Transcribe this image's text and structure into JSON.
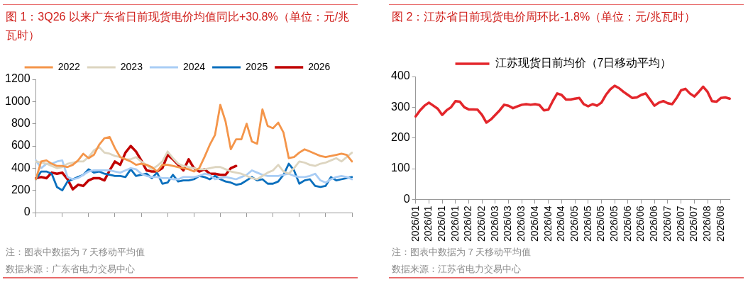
{
  "chart_data": [
    {
      "type": "line",
      "title": "图 1：3Q26 以来广东省日前现货电价均值同比+30.8%（单位：元/兆瓦时）",
      "categories": [
        null,
        null,
        null,
        null,
        null,
        null,
        null,
        null,
        null,
        null,
        null,
        null,
        null,
        null,
        null,
        null,
        null,
        null,
        null,
        null,
        null,
        null,
        null,
        null,
        null,
        null,
        null,
        null,
        null,
        null,
        null,
        null,
        null,
        null,
        null,
        null,
        null,
        null,
        null,
        null,
        null,
        null,
        null,
        null,
        null,
        null,
        null,
        null,
        null,
        null,
        null,
        null,
        null,
        null,
        null,
        null,
        null,
        null,
        null,
        null,
        null
      ],
      "series": [
        {
          "name": "2022",
          "color": "#f4954a",
          "values": [
            300,
            460,
            470,
            440,
            420,
            420,
            410,
            430,
            470,
            530,
            490,
            520,
            610,
            670,
            680,
            580,
            500,
            480,
            460,
            430,
            440,
            430,
            410,
            370,
            430,
            430,
            420,
            410,
            400,
            390,
            370,
            400,
            500,
            610,
            700,
            970,
            820,
            570,
            660,
            660,
            800,
            640,
            620,
            930,
            780,
            760,
            810,
            720,
            490,
            500,
            540,
            570,
            550,
            530,
            510,
            500,
            510,
            520,
            530,
            520,
            460
          ]
        },
        {
          "name": "2023",
          "color": "#ddd5c0",
          "values": [
            460,
            450,
            440,
            420,
            400,
            410,
            440,
            450,
            460,
            460,
            500,
            560,
            590,
            540,
            530,
            510,
            500,
            480,
            480,
            500,
            460,
            430,
            390,
            420,
            460,
            550,
            490,
            440,
            420,
            410,
            400,
            390,
            390,
            400,
            410,
            410,
            390,
            370,
            360,
            350,
            330,
            310,
            300,
            330,
            360,
            380,
            430,
            370,
            350,
            400,
            460,
            450,
            430,
            420,
            440,
            450,
            470,
            490,
            460,
            500,
            540
          ]
        },
        {
          "name": "2024",
          "color": "#a9cdf5",
          "values": [
            470,
            400,
            440,
            440,
            460,
            470,
            320,
            300,
            310,
            340,
            370,
            380,
            380,
            380,
            380,
            370,
            360,
            380,
            400,
            390,
            350,
            330,
            320,
            320,
            310,
            310,
            300,
            300,
            320,
            320,
            320,
            330,
            350,
            340,
            300,
            310,
            320,
            310,
            300,
            320,
            340,
            380,
            360,
            340,
            330,
            330,
            330,
            340,
            350,
            330,
            320,
            320,
            330,
            350,
            290,
            270,
            300,
            320,
            330,
            320,
            300
          ]
        },
        {
          "name": "2025",
          "color": "#0a6fbd",
          "values": [
            300,
            370,
            370,
            350,
            230,
            200,
            280,
            300,
            320,
            340,
            390,
            360,
            370,
            350,
            340,
            330,
            330,
            320,
            390,
            330,
            340,
            350,
            310,
            360,
            260,
            270,
            340,
            280,
            290,
            290,
            300,
            330,
            320,
            300,
            330,
            300,
            280,
            270,
            250,
            260,
            290,
            320,
            290,
            300,
            260,
            260,
            280,
            340,
            440,
            380,
            260,
            290,
            300,
            240,
            230,
            240,
            320,
            290,
            300,
            310,
            320
          ]
        },
        {
          "name": "2026",
          "color": "#c00000",
          "values": [
            310,
            320,
            310,
            360,
            350,
            360,
            300,
            210,
            250,
            240,
            290,
            310,
            310,
            290,
            380,
            460,
            430,
            540,
            600,
            550,
            470,
            380,
            370,
            370,
            400,
            520,
            480,
            430,
            380,
            480,
            400,
            370,
            390,
            350,
            350,
            340,
            340,
            400,
            420,
            null,
            null,
            null,
            null,
            null,
            null,
            null,
            null,
            null,
            null,
            null,
            null,
            null,
            null,
            null,
            null,
            null,
            null,
            null,
            null,
            null,
            null
          ]
        }
      ],
      "ylim": [
        0,
        1200
      ],
      "yticks": [
        0,
        200,
        400,
        600,
        800,
        1000,
        1200
      ],
      "legend": "top",
      "tick_labels": "y",
      "annotations": [
        "注：图表中数据为 7 天移动平均值",
        "数据来源：广东省电力交易中心"
      ]
    },
    {
      "type": "line",
      "title": "图 2：江苏省日前现货电价周环比-1.8%（单位：元/兆瓦时）",
      "categories": [
        "2026/01",
        null,
        null,
        "2026/01",
        null,
        null,
        "2026/01",
        null,
        null,
        "2026/01",
        null,
        null,
        "2026/02",
        null,
        null,
        "2026/02",
        null,
        null,
        "2026/03",
        null,
        null,
        "2026/03",
        null,
        null,
        "2026/03",
        null,
        null,
        "2026/04",
        null,
        null,
        "2026/04",
        null,
        null,
        "2026/04",
        null,
        null,
        "2026/05",
        null,
        null,
        "2026/05",
        null,
        null,
        "2026/05",
        null,
        null,
        "2026/05",
        null,
        null,
        "2026/06",
        null,
        null,
        "2026/06",
        null,
        null,
        "2026/06",
        null,
        null,
        "2026/07",
        null,
        null,
        "2026/07",
        null,
        null,
        "2026/07",
        null,
        null,
        "2026/08",
        null,
        null,
        "2026/08",
        null,
        null
      ],
      "series": [
        {
          "name": "江苏现货日前均价（7日移动平均）",
          "color": "#e3262b",
          "values": [
            270,
            290,
            305,
            315,
            305,
            295,
            275,
            290,
            300,
            320,
            318,
            300,
            293,
            293,
            292,
            275,
            250,
            260,
            275,
            290,
            308,
            305,
            297,
            303,
            308,
            310,
            308,
            310,
            307,
            290,
            292,
            320,
            345,
            340,
            325,
            325,
            328,
            330,
            310,
            303,
            310,
            305,
            315,
            340,
            358,
            370,
            362,
            350,
            340,
            330,
            332,
            340,
            345,
            325,
            305,
            315,
            320,
            313,
            310,
            330,
            355,
            360,
            345,
            335,
            350,
            367,
            350,
            320,
            318,
            330,
            332,
            328
          ]
        }
      ],
      "ylim": [
        0,
        400
      ],
      "yticks": [
        0,
        100,
        200,
        300,
        400
      ],
      "legend": "top",
      "annotations": [
        "注：图表中数据为 7 天移动平均值",
        "数据来源：江苏省电力交易中心"
      ]
    }
  ]
}
